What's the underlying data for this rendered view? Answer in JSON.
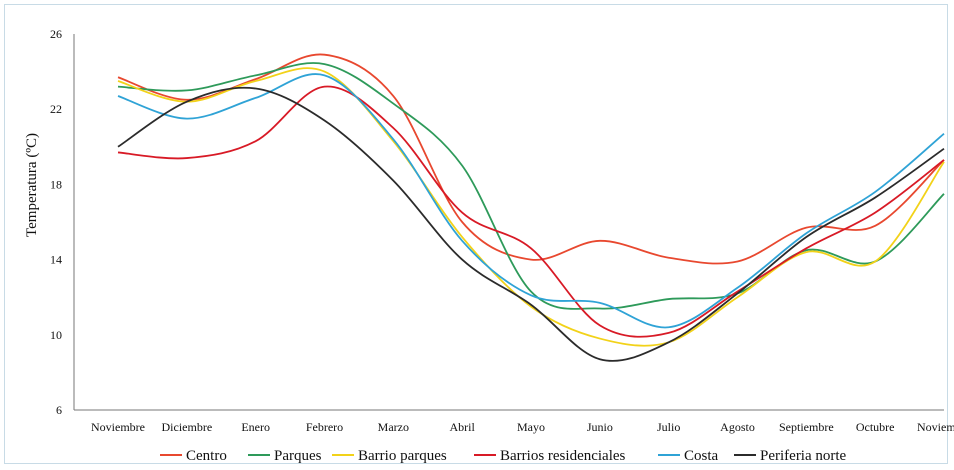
{
  "chart_data": {
    "type": "line",
    "title": "",
    "xlabel": "",
    "ylabel": "Temperatura (ºC)",
    "categories": [
      "Noviembre",
      "Diciembre",
      "Enero",
      "Febrero",
      "Marzo",
      "Abril",
      "Mayo",
      "Junio",
      "Julio",
      "Agosto",
      "Septiembre",
      "Octubre",
      "Noviembre"
    ],
    "ylim": [
      6,
      26
    ],
    "yticks": [
      6,
      10,
      14,
      18,
      22,
      26
    ],
    "grid": false,
    "legend_position": "bottom",
    "series": [
      {
        "name": "Centro",
        "color": "#e8482f",
        "values": [
          23.7,
          22.5,
          23.6,
          24.9,
          22.7,
          16.0,
          14.0,
          15.0,
          14.1,
          13.9,
          15.7,
          15.8,
          19.3
        ]
      },
      {
        "name": "Parques",
        "color": "#2e9a5a",
        "values": [
          23.2,
          23.0,
          23.8,
          24.4,
          22.3,
          19.0,
          12.3,
          11.4,
          11.9,
          12.2,
          14.5,
          13.9,
          17.5
        ]
      },
      {
        "name": "Barrio parques",
        "color": "#f2d219",
        "values": [
          23.5,
          22.4,
          23.5,
          24.0,
          20.3,
          15.2,
          11.5,
          9.8,
          9.6,
          12.0,
          14.4,
          13.9,
          19.2
        ]
      },
      {
        "name": "Barrios residenciales",
        "color": "#d81a26",
        "values": [
          19.7,
          19.4,
          20.3,
          23.2,
          21.0,
          16.5,
          14.6,
          10.5,
          10.1,
          12.3,
          14.6,
          16.5,
          19.3
        ]
      },
      {
        "name": "Costa",
        "color": "#2fa3d6",
        "values": [
          22.7,
          21.5,
          22.6,
          23.8,
          20.4,
          15.0,
          12.1,
          11.7,
          10.4,
          12.5,
          15.4,
          17.6,
          20.7
        ]
      },
      {
        "name": "Periferia norte",
        "color": "#2b2b2b",
        "values": [
          20.0,
          22.4,
          23.1,
          21.4,
          18.2,
          14.0,
          11.6,
          8.7,
          9.6,
          12.2,
          15.2,
          17.3,
          19.9
        ]
      }
    ]
  }
}
